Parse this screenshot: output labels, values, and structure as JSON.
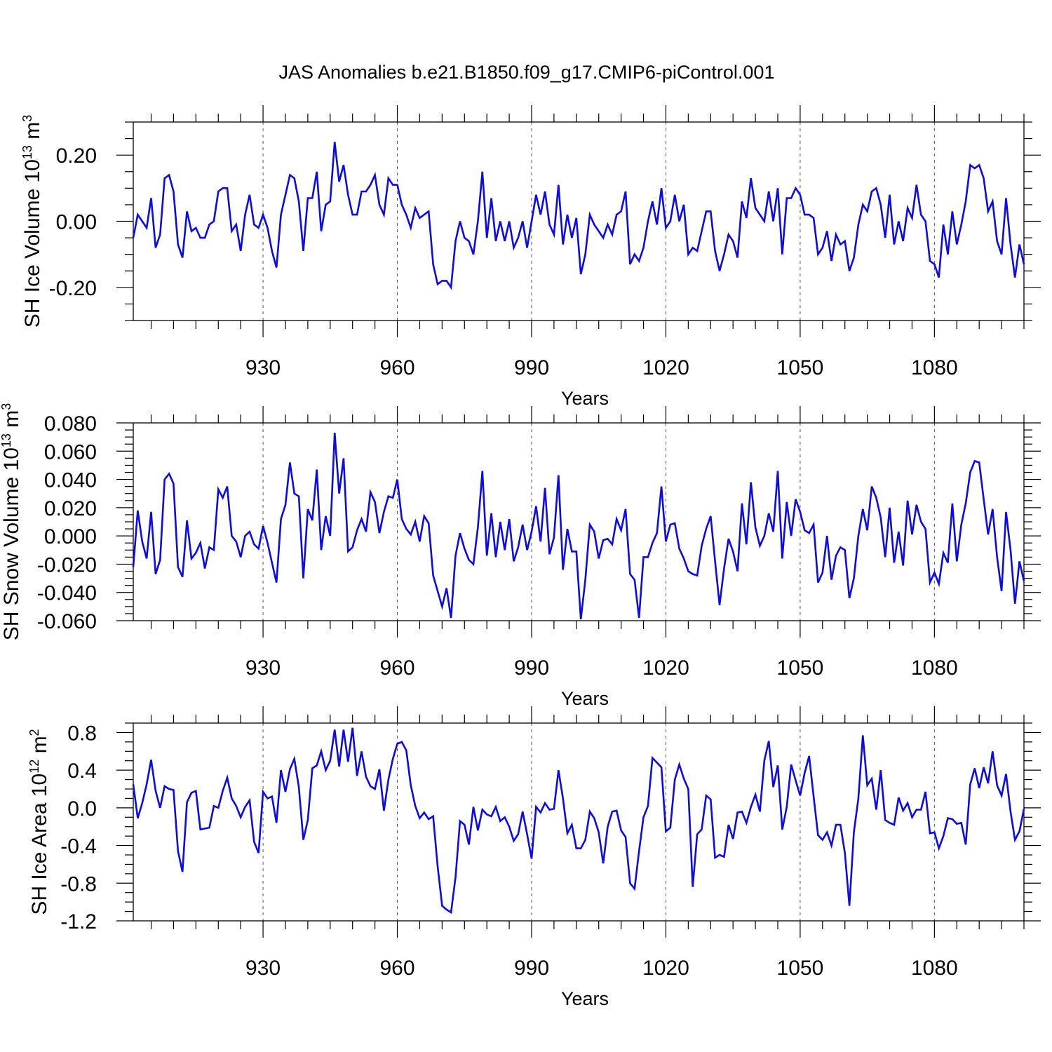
{
  "title": "JAS Anomalies b.e21.B1850.f09_g17.CMIP6-piControl.001",
  "colors": {
    "line": "#0a0af0",
    "frame": "#000000",
    "grid": "#555555"
  },
  "chart_data": [
    {
      "type": "line",
      "ylabel": {
        "main": "SH Ice Volume 10",
        "sup": "13",
        "unit": " m",
        "unit_sup": "3"
      },
      "xlabel": "Years",
      "xlim": [
        901,
        1100
      ],
      "ylim": [
        -0.3,
        0.3
      ],
      "xticks": [
        930,
        960,
        990,
        1020,
        1050,
        1080
      ],
      "xtick_labels": [
        "930",
        "960",
        "990",
        "1020",
        "1050",
        "1080"
      ],
      "yticks": [
        -0.2,
        0.0,
        0.2
      ],
      "ytick_labels": [
        "-0.20",
        "0.00",
        "0.20"
      ],
      "yminor_step": 0.05,
      "grid": "vertical dashed at major x ticks",
      "x_start": 901,
      "values": [
        -0.05,
        0.02,
        0.0,
        -0.02,
        0.07,
        -0.08,
        -0.04,
        0.13,
        0.14,
        0.09,
        -0.07,
        -0.11,
        0.03,
        -0.03,
        -0.02,
        -0.05,
        -0.05,
        -0.01,
        0.0,
        0.09,
        0.1,
        0.1,
        -0.03,
        -0.01,
        -0.09,
        0.02,
        0.08,
        -0.01,
        -0.02,
        0.02,
        -0.02,
        -0.09,
        -0.14,
        0.02,
        0.08,
        0.14,
        0.13,
        0.06,
        -0.09,
        0.07,
        0.07,
        0.15,
        -0.03,
        0.05,
        0.06,
        0.24,
        0.12,
        0.17,
        0.08,
        0.02,
        0.02,
        0.09,
        0.09,
        0.11,
        0.14,
        0.05,
        0.02,
        0.13,
        0.11,
        0.11,
        0.05,
        0.02,
        -0.02,
        0.04,
        0.01,
        0.02,
        0.03,
        -0.13,
        -0.19,
        -0.18,
        -0.18,
        -0.2,
        -0.06,
        0.0,
        -0.05,
        -0.06,
        -0.1,
        0.0,
        0.15,
        -0.05,
        0.07,
        -0.06,
        0.0,
        -0.06,
        0.0,
        -0.08,
        -0.05,
        0.0,
        -0.08,
        0.0,
        0.08,
        0.02,
        0.09,
        -0.01,
        -0.04,
        0.11,
        -0.07,
        0.02,
        -0.05,
        0.01,
        -0.16,
        -0.1,
        0.02,
        -0.01,
        -0.03,
        -0.05,
        -0.01,
        -0.04,
        0.02,
        0.03,
        0.09,
        -0.13,
        -0.1,
        -0.12,
        -0.08,
        0.0,
        0.06,
        -0.01,
        0.1,
        -0.02,
        0.0,
        0.08,
        0.0,
        0.05,
        -0.1,
        -0.08,
        -0.09,
        -0.03,
        0.03,
        0.03,
        -0.09,
        -0.15,
        -0.1,
        -0.04,
        -0.06,
        -0.11,
        0.06,
        0.01,
        0.13,
        0.04,
        0.02,
        0.0,
        0.09,
        0.0,
        0.1,
        -0.1,
        0.07,
        0.07,
        0.1,
        0.08,
        0.02,
        0.02,
        0.01,
        -0.1,
        -0.08,
        -0.03,
        -0.12,
        -0.04,
        -0.07,
        -0.06,
        -0.15,
        -0.11,
        -0.01,
        0.05,
        0.03,
        0.09,
        0.1,
        0.05,
        -0.05,
        0.08,
        -0.07,
        0.0,
        -0.06,
        0.04,
        0.01,
        0.11,
        0.02,
        0.0,
        -0.12,
        -0.13,
        -0.17,
        -0.01,
        -0.1,
        0.03,
        -0.07,
        -0.01,
        0.06,
        0.17,
        0.16,
        0.17,
        0.13,
        0.03,
        0.06,
        -0.06,
        -0.1,
        0.07,
        -0.07,
        -0.17,
        -0.07,
        -0.13
      ]
    },
    {
      "type": "line",
      "ylabel": {
        "main": "SH Snow Volume 10",
        "sup": "13",
        "unit": " m",
        "unit_sup": "3"
      },
      "xlabel": "Years",
      "xlim": [
        901,
        1100
      ],
      "ylim": [
        -0.06,
        0.08
      ],
      "xticks": [
        930,
        960,
        990,
        1020,
        1050,
        1080
      ],
      "xtick_labels": [
        "930",
        "960",
        "990",
        "1020",
        "1050",
        "1080"
      ],
      "yticks": [
        -0.06,
        -0.04,
        -0.02,
        0.0,
        0.02,
        0.04,
        0.06,
        0.08
      ],
      "ytick_labels": [
        "-0.060",
        "-0.040",
        "-0.020",
        "0.000",
        "0.020",
        "0.040",
        "0.060",
        "0.080"
      ],
      "yminor_step": 0.005,
      "grid": "vertical dashed at major x ticks",
      "x_start": 901,
      "values": [
        -0.022,
        0.018,
        -0.004,
        -0.016,
        0.017,
        -0.027,
        -0.017,
        0.04,
        0.044,
        0.037,
        -0.022,
        -0.029,
        0.011,
        -0.016,
        -0.012,
        -0.005,
        -0.023,
        -0.008,
        -0.01,
        0.033,
        0.027,
        0.035,
        0.0,
        -0.004,
        -0.015,
        0.0,
        0.003,
        -0.006,
        -0.009,
        0.007,
        -0.005,
        -0.019,
        -0.033,
        0.012,
        0.022,
        0.052,
        0.03,
        0.028,
        -0.03,
        0.019,
        0.011,
        0.047,
        -0.01,
        0.014,
        0.0,
        0.073,
        0.03,
        0.055,
        -0.011,
        -0.008,
        0.004,
        0.012,
        0.003,
        0.031,
        0.024,
        0.002,
        0.017,
        0.028,
        0.027,
        0.04,
        0.012,
        0.005,
        0.001,
        0.01,
        -0.004,
        0.014,
        0.009,
        -0.028,
        -0.039,
        -0.05,
        -0.037,
        -0.058,
        -0.014,
        0.002,
        -0.009,
        -0.017,
        -0.02,
        0.006,
        0.046,
        -0.014,
        0.016,
        -0.015,
        0.01,
        -0.01,
        0.012,
        -0.018,
        -0.008,
        0.008,
        -0.01,
        0.003,
        0.021,
        -0.004,
        0.034,
        -0.013,
        -0.001,
        0.043,
        -0.024,
        0.005,
        -0.011,
        -0.011,
        -0.059,
        -0.031,
        0.008,
        0.003,
        -0.016,
        -0.003,
        -0.002,
        -0.006,
        0.012,
        0.004,
        0.019,
        -0.027,
        -0.031,
        -0.058,
        -0.015,
        -0.015,
        -0.005,
        0.002,
        0.035,
        -0.004,
        0.008,
        0.009,
        -0.009,
        -0.016,
        -0.025,
        -0.027,
        -0.028,
        -0.007,
        0.005,
        0.014,
        -0.018,
        -0.049,
        -0.023,
        -0.002,
        -0.011,
        -0.025,
        0.023,
        -0.006,
        0.038,
        0.006,
        -0.007,
        0.0,
        0.016,
        0.003,
        0.046,
        -0.016,
        0.024,
        0.0,
        0.026,
        0.017,
        0.004,
        0.002,
        0.008,
        -0.033,
        -0.026,
        0.0,
        -0.031,
        -0.014,
        -0.008,
        -0.01,
        -0.044,
        -0.03,
        0.0,
        0.019,
        0.004,
        0.035,
        0.027,
        0.013,
        -0.015,
        0.02,
        -0.019,
        0.003,
        -0.021,
        0.025,
        0.001,
        0.022,
        0.01,
        0.005,
        -0.033,
        -0.026,
        -0.034,
        -0.012,
        -0.019,
        0.023,
        -0.018,
        0.008,
        0.023,
        0.045,
        0.053,
        0.052,
        0.026,
        0.001,
        0.019,
        -0.015,
        -0.039,
        0.017,
        -0.01,
        -0.048,
        -0.018,
        -0.032
      ]
    },
    {
      "type": "line",
      "ylabel": {
        "main": "SH Ice Area 10",
        "sup": "12",
        "unit": " m",
        "unit_sup": "2"
      },
      "xlabel": "Years",
      "xlim": [
        901,
        1100
      ],
      "ylim": [
        -1.2,
        0.9
      ],
      "xticks": [
        930,
        960,
        990,
        1020,
        1050,
        1080
      ],
      "xtick_labels": [
        "930",
        "960",
        "990",
        "1020",
        "1050",
        "1080"
      ],
      "yticks": [
        -1.2,
        -0.8,
        -0.4,
        0.0,
        0.4,
        0.8
      ],
      "ytick_labels": [
        "-1.2",
        "-0.8",
        "-0.4",
        "0.0",
        "0.4",
        "0.8"
      ],
      "yminor_step": 0.1,
      "grid": "vertical dashed at major x ticks",
      "x_start": 901,
      "values": [
        0.25,
        -0.11,
        0.05,
        0.25,
        0.51,
        0.18,
        0.0,
        0.23,
        0.2,
        0.19,
        -0.46,
        -0.68,
        0.06,
        0.16,
        0.18,
        -0.23,
        -0.22,
        -0.21,
        0.02,
        0.0,
        0.18,
        0.32,
        0.1,
        0.02,
        -0.1,
        0.01,
        0.08,
        -0.36,
        -0.48,
        0.17,
        0.1,
        0.12,
        -0.16,
        0.4,
        0.17,
        0.41,
        0.52,
        0.22,
        -0.34,
        -0.13,
        0.42,
        0.45,
        0.6,
        0.4,
        0.5,
        0.83,
        0.44,
        0.83,
        0.49,
        0.85,
        0.34,
        0.6,
        0.33,
        0.23,
        0.2,
        0.41,
        -0.03,
        0.3,
        0.52,
        0.68,
        0.7,
        0.61,
        0.24,
        0.02,
        -0.11,
        -0.05,
        -0.12,
        -0.09,
        -0.62,
        -1.04,
        -1.08,
        -1.11,
        -0.74,
        -0.14,
        -0.18,
        -0.39,
        0.01,
        -0.24,
        -0.02,
        -0.07,
        -0.09,
        0.01,
        -0.14,
        -0.1,
        -0.2,
        -0.35,
        -0.28,
        -0.04,
        -0.28,
        -0.54,
        0.01,
        -0.05,
        0.05,
        -0.02,
        -0.01,
        0.4,
        0.1,
        -0.27,
        -0.18,
        -0.43,
        -0.43,
        -0.34,
        -0.04,
        -0.11,
        -0.26,
        -0.59,
        -0.2,
        -0.04,
        -0.03,
        -0.24,
        -0.31,
        -0.8,
        -0.86,
        -0.46,
        -0.1,
        0.02,
        0.53,
        0.48,
        0.43,
        -0.25,
        -0.21,
        0.3,
        0.46,
        0.31,
        0.2,
        -0.84,
        -0.28,
        -0.23,
        0.13,
        0.09,
        -0.53,
        -0.5,
        -0.52,
        -0.18,
        -0.33,
        -0.05,
        -0.04,
        -0.16,
        0.01,
        0.14,
        -0.04,
        0.5,
        0.71,
        0.22,
        0.45,
        -0.23,
        0.01,
        0.46,
        0.29,
        0.13,
        0.37,
        0.55,
        0.12,
        -0.29,
        -0.34,
        -0.26,
        -0.4,
        -0.18,
        -0.18,
        -0.48,
        -1.04,
        -0.26,
        0.1,
        0.77,
        0.24,
        0.31,
        -0.02,
        0.4,
        -0.13,
        -0.16,
        -0.18,
        0.11,
        -0.03,
        0.05,
        -0.1,
        -0.02,
        -0.02,
        0.17,
        -0.27,
        -0.26,
        -0.43,
        -0.3,
        -0.11,
        -0.12,
        -0.17,
        -0.16,
        -0.39,
        0.25,
        0.42,
        0.21,
        0.43,
        0.26,
        0.6,
        0.24,
        0.13,
        0.36,
        -0.04,
        -0.34,
        -0.25,
        -0.01
      ]
    }
  ]
}
